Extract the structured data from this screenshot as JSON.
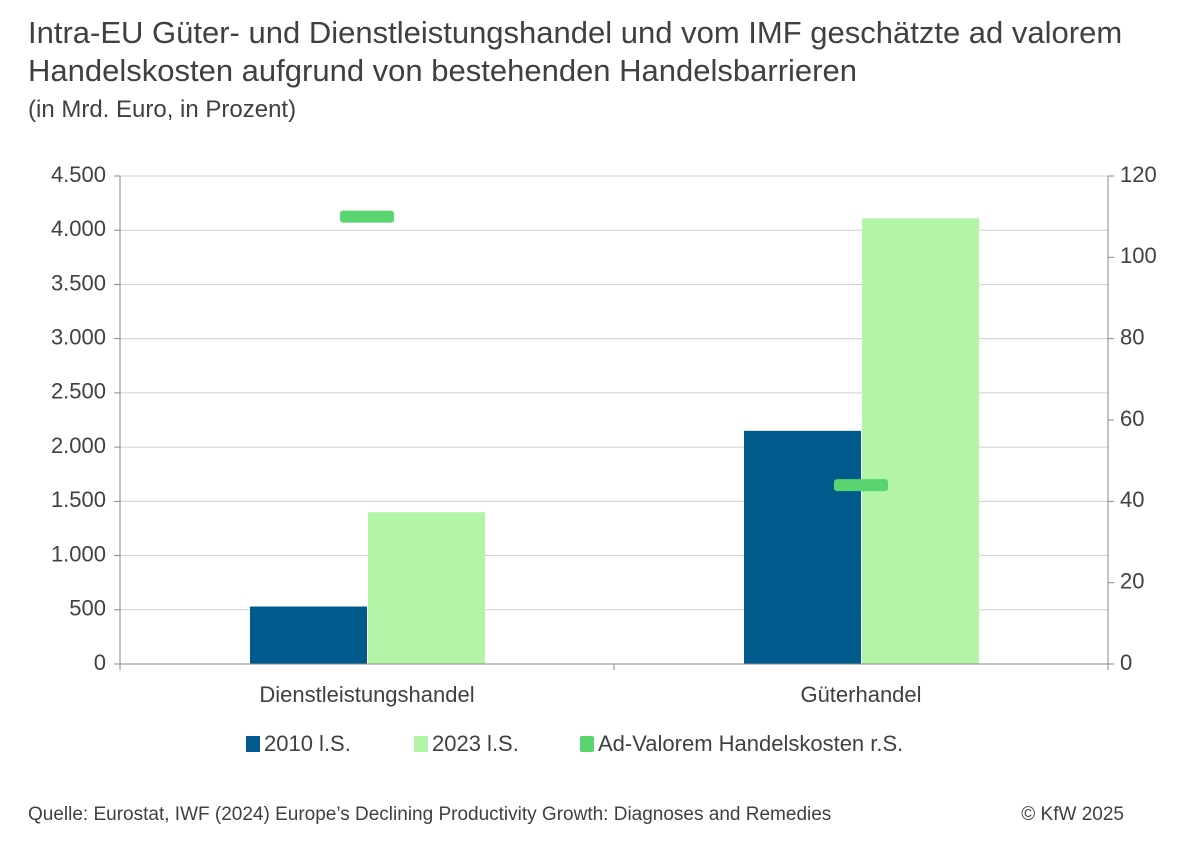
{
  "chart_data": {
    "type": "bar",
    "title": "Intra-EU Güter- und Dienstleistungshandel und vom IMF geschätzte ad valorem Handelskosten aufgrund von bestehenden Handelsbarrieren",
    "subtitle": "(in Mrd. Euro, in Prozent)",
    "categories": [
      "Dienstleistungshandel",
      "Güterhandel"
    ],
    "series": [
      {
        "name": "2010 l.S.",
        "color": "#005a8c",
        "values": [
          530,
          2150
        ]
      },
      {
        "name": "2023 l.S.",
        "color": "#b3f5a6",
        "values": [
          1400,
          4110
        ]
      },
      {
        "name": "Ad-Valorem Handelskosten r.S.",
        "color": "#5ad46e",
        "values": [
          110,
          44
        ],
        "axis": "y2",
        "type": "marker"
      }
    ],
    "ylim": [
      0,
      4500
    ],
    "yticks": [
      0,
      500,
      {
        "value": 1000,
        "label": "1.000"
      },
      {
        "value": 1500,
        "label": "1.500"
      },
      {
        "value": 2000,
        "label": "2.000"
      },
      {
        "value": 2500,
        "label": "2.500"
      },
      {
        "value": 3000,
        "label": "3.000"
      },
      {
        "value": 3500,
        "label": "3.500"
      },
      {
        "value": 4000,
        "label": "4.000"
      },
      {
        "value": 4500,
        "label": "4.500"
      }
    ],
    "y2lim": [
      0,
      120
    ],
    "y2ticks": [
      0,
      20,
      40,
      60,
      80,
      100,
      120
    ],
    "grid": true,
    "legend": "bottom",
    "source": "Quelle: Eurostat, IWF (2024) Europe’s Declining Productivity Growth: Diagnoses and Remedies",
    "copyright": "© KfW 2025"
  }
}
